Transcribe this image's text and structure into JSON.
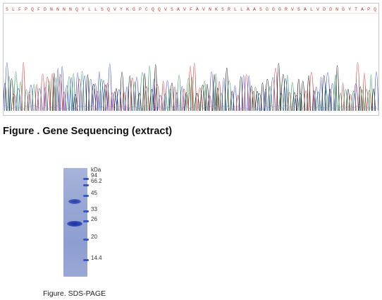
{
  "figure1": {
    "caption": "Figure . Gene Sequencing (extract)",
    "sequence_letters": "SLFPQFDNNNNQYLLSQVYKGPCQQVSAVFAVNKSRLLAASGGGRVSALVDDNGYTAPQQDSLLLAYYEKLGVSPV",
    "trace_colors": [
      "#111111",
      "#d33a3a",
      "#3a4fd6",
      "#2f9a5a"
    ]
  },
  "figure2": {
    "caption": "Figure. SDS-PAGE",
    "unit_label": "kDa",
    "marker_weights": [
      "94",
      "66.2",
      "45",
      "33",
      "26",
      "20",
      "14.4"
    ]
  }
}
